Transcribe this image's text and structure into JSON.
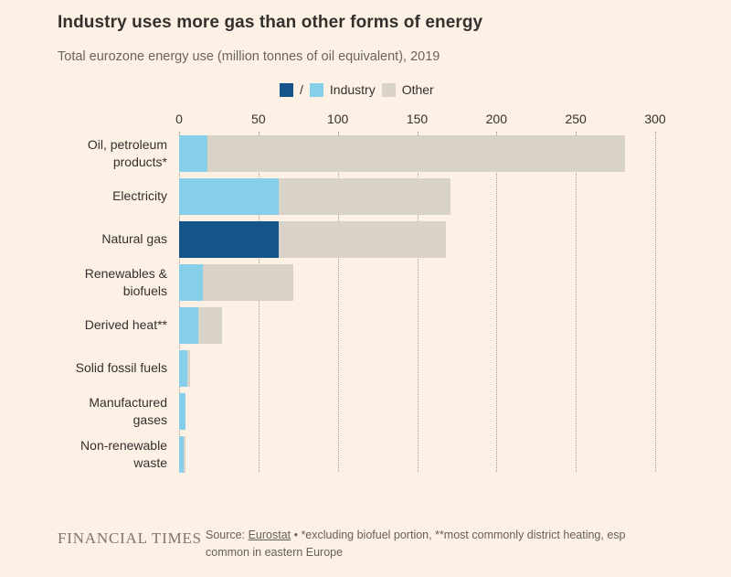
{
  "page": {
    "background": "#fdf1e5"
  },
  "header": {
    "title": "Industry uses more gas than other forms of energy",
    "subtitle": "Total eurozone energy use (million tonnes of oil equivalent), 2019"
  },
  "legend": {
    "separator": "/",
    "industry_label": "Industry",
    "other_label": "Other"
  },
  "chart_data": {
    "type": "bar",
    "orientation": "horizontal",
    "stacked": true,
    "title": "Industry uses more gas than other forms of energy",
    "subtitle": "Total eurozone energy use (million tonnes of oil equivalent), 2019",
    "categories": [
      "Oil, petroleum products*",
      "Electricity",
      "Natural gas",
      "Renewables & biofuels",
      "Derived heat**",
      "Solid fossil fuels",
      "Manufactured gases",
      "Non-renewable waste"
    ],
    "series": [
      {
        "name": "Industry",
        "values": [
          18,
          63,
          63,
          15,
          12,
          5,
          4,
          3
        ]
      },
      {
        "name": "Other",
        "values": [
          263,
          108,
          105,
          57,
          15,
          2,
          0,
          1
        ]
      }
    ],
    "highlight_category": "Natural gas",
    "x_ticks": [
      0,
      50,
      100,
      150,
      200,
      250,
      300
    ],
    "xlim": [
      0,
      300
    ],
    "grid": "dotted-vertical",
    "legend_position": "top",
    "colors": {
      "industry": "#85cfe9",
      "industry_highlight": "#15548a",
      "other": "#d8d2c8",
      "gridline": "#a39b90",
      "background": "#fdf1e5"
    }
  },
  "footer": {
    "logo": "FINANCIAL TIMES",
    "source_prefix": "Source: ",
    "source_link": "Eurostat",
    "source_rest": " • *excluding biofuel portion, **most commonly district heating, esp common in eastern Europe"
  }
}
